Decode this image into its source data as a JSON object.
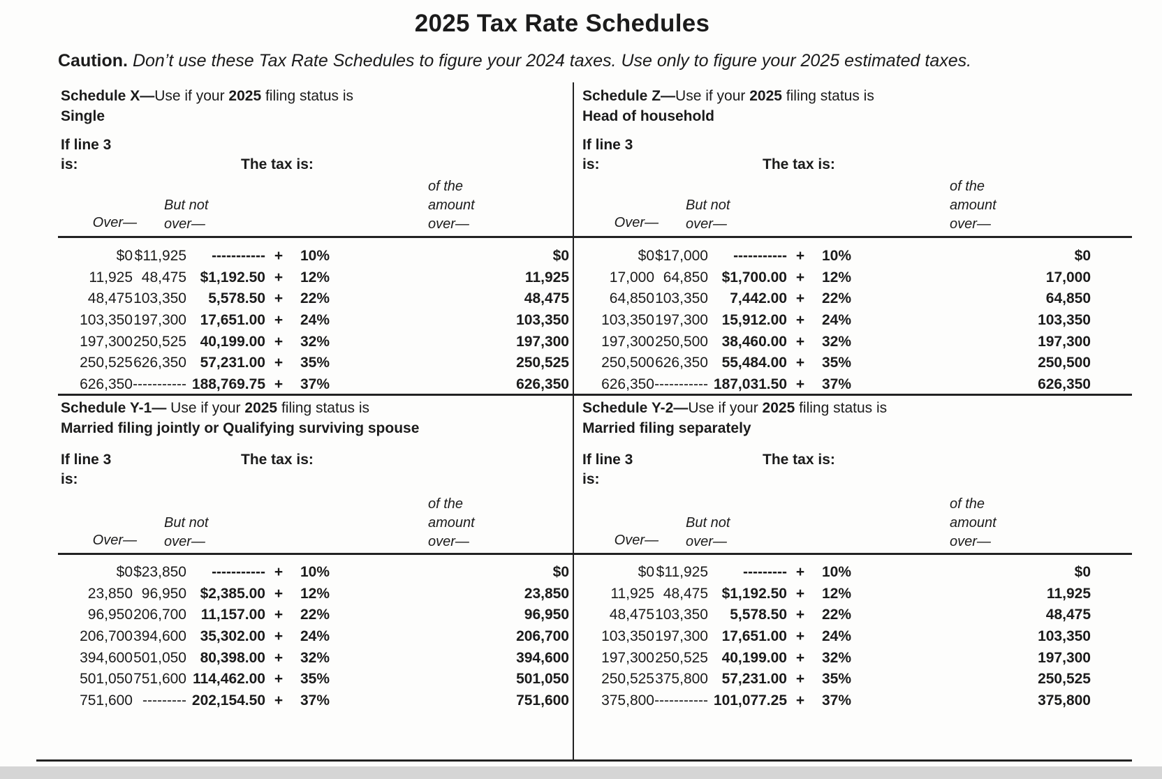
{
  "page": {
    "title": "2025 Tax Rate Schedules",
    "caution_label": "Caution.",
    "caution_text": " Don’t use these Tax Rate Schedules to figure your 2024 taxes. Use only to figure your 2025 estimated taxes."
  },
  "labels": {
    "if_line_1": "If line 3",
    "if_line_2": "is:",
    "tax_is": "The tax is:",
    "over": "Over—",
    "but_not_1": "But not",
    "but_not_2": "over—",
    "amount_1": "of the",
    "amount_2": "amount",
    "amount_3": "over—",
    "plus": "+"
  },
  "schedules": [
    {
      "name_bold": "Schedule X—",
      "use_text": "Use if your ",
      "year": "2025",
      "suffix": " filing status is",
      "status": "Single",
      "rows": [
        [
          "$0",
          "$11,925",
          "-----------",
          "10%",
          "$0"
        ],
        [
          "11,925",
          "48,475",
          "$1,192.50",
          "12%",
          "11,925"
        ],
        [
          "48,475",
          "103,350",
          "5,578.50",
          "22%",
          "48,475"
        ],
        [
          "103,350",
          "197,300",
          "17,651.00",
          "24%",
          "103,350"
        ],
        [
          "197,300",
          "250,525",
          "40,199.00",
          "32%",
          "197,300"
        ],
        [
          "250,525",
          "626,350",
          "57,231.00",
          "35%",
          "250,525"
        ],
        [
          "626,350",
          "-----------",
          "188,769.75",
          "37%",
          "626,350"
        ]
      ]
    },
    {
      "name_bold": "Schedule Z—",
      "use_text": "Use if your ",
      "year": "2025",
      "suffix": " filing status is",
      "status": "Head of household",
      "rows": [
        [
          "$0",
          "$17,000",
          "-----------",
          "10%",
          "$0"
        ],
        [
          "17,000",
          "64,850",
          "$1,700.00",
          "12%",
          "17,000"
        ],
        [
          "64,850",
          "103,350",
          "7,442.00",
          "22%",
          "64,850"
        ],
        [
          "103,350",
          "197,300",
          "15,912.00",
          "24%",
          "103,350"
        ],
        [
          "197,300",
          "250,500",
          "38,460.00",
          "32%",
          "197,300"
        ],
        [
          "250,500",
          "626,350",
          "55,484.00",
          "35%",
          "250,500"
        ],
        [
          "626,350",
          "-----------",
          "187,031.50",
          "37%",
          "626,350"
        ]
      ]
    },
    {
      "name_bold": "Schedule Y-1—",
      "use_text": " Use if your ",
      "year": "2025",
      "suffix": " filing status is",
      "status": "Married filing jointly or Qualifying surviving spouse",
      "rows": [
        [
          "$0",
          "$23,850",
          "-----------",
          "10%",
          "$0"
        ],
        [
          "23,850",
          "96,950",
          "$2,385.00",
          "12%",
          "23,850"
        ],
        [
          "96,950",
          "206,700",
          "11,157.00",
          "22%",
          "96,950"
        ],
        [
          "206,700",
          "394,600",
          "35,302.00",
          "24%",
          "206,700"
        ],
        [
          "394,600",
          "501,050",
          "80,398.00",
          "32%",
          "394,600"
        ],
        [
          "501,050",
          "751,600",
          "114,462.00",
          "35%",
          "501,050"
        ],
        [
          "751,600",
          "---------",
          "202,154.50",
          "37%",
          "751,600"
        ]
      ]
    },
    {
      "name_bold": "Schedule Y-2—",
      "use_text": "Use if your ",
      "year": "2025",
      "suffix": " filing status is",
      "status": "Married filing separately",
      "rows": [
        [
          "$0",
          "$11,925",
          "---------",
          "10%",
          "$0"
        ],
        [
          "11,925",
          "48,475",
          "$1,192.50",
          "12%",
          "11,925"
        ],
        [
          "48,475",
          "103,350",
          "5,578.50",
          "22%",
          "48,475"
        ],
        [
          "103,350",
          "197,300",
          "17,651.00",
          "24%",
          "103,350"
        ],
        [
          "197,300",
          "250,525",
          "40,199.00",
          "32%",
          "197,300"
        ],
        [
          "250,525",
          "375,800",
          "57,231.00",
          "35%",
          "250,525"
        ],
        [
          "375,800",
          "-----------",
          "101,077.25",
          "37%",
          "375,800"
        ]
      ]
    }
  ]
}
